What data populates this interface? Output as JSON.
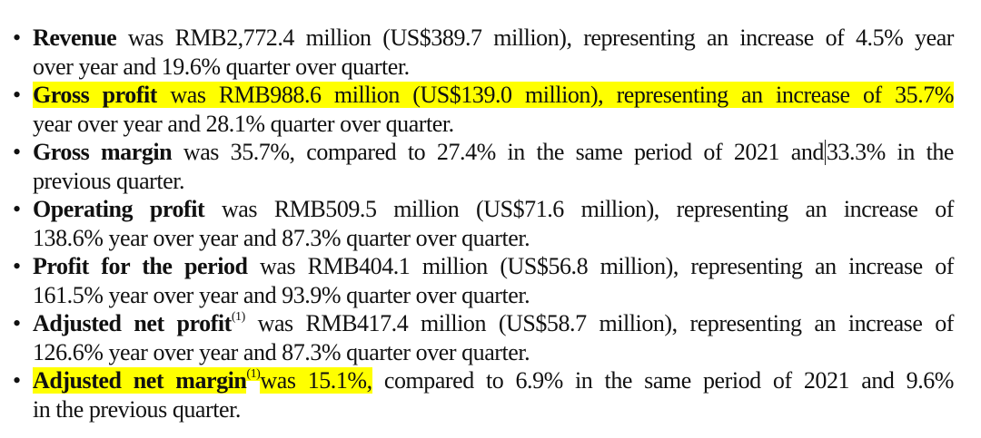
{
  "bullet_glyph": "•",
  "highlight_color": "#ffff00",
  "items": [
    {
      "lines": [
        [
          {
            "t": "Revenue",
            "b": true
          },
          {
            "t": " was RMB2,772.4 million (US$389.7 million), representing an increase of 4.5% year"
          }
        ],
        [
          {
            "t": "over year and 19.6% quarter over quarter."
          }
        ]
      ]
    },
    {
      "lines": [
        [
          {
            "t": "Gross profit",
            "b": true,
            "hl": true
          },
          {
            "t": " was RMB988.6 million (US$139.0 million), representing an increase of 35.7%",
            "hl": true
          }
        ],
        [
          {
            "t": "year over year and 28.1% quarter over quarter."
          }
        ]
      ]
    },
    {
      "lines": [
        [
          {
            "t": "Gross margin",
            "b": true
          },
          {
            "t": " was 35.7%, compared to 27.4% in the same period of 2021 and"
          },
          {
            "caret": true
          },
          {
            "t": "33.3% in the"
          }
        ],
        [
          {
            "t": "previous quarter."
          }
        ]
      ]
    },
    {
      "lines": [
        [
          {
            "t": "Operating profit",
            "b": true
          },
          {
            "t": " was RMB509.5 million (US$71.6 million), representing an increase of"
          }
        ],
        [
          {
            "t": "138.6% year over year and 87.3% quarter over quarter."
          }
        ]
      ]
    },
    {
      "lines": [
        [
          {
            "t": "Profit for the period",
            "b": true
          },
          {
            "t": " was RMB404.1 million (US$56.8 million), representing an increase of"
          }
        ],
        [
          {
            "t": "161.5% year over year and 93.9% quarter over quarter."
          }
        ]
      ]
    },
    {
      "lines": [
        [
          {
            "t": "Adjusted net profit",
            "b": true
          },
          {
            "t": "(1)",
            "sup": true
          },
          {
            "t": " was RMB417.4 million (US$58.7 million), representing an increase of"
          }
        ],
        [
          {
            "t": "126.6% year over year and 87.3% quarter over quarter."
          }
        ]
      ]
    },
    {
      "lines": [
        [
          {
            "t": "Adjusted net margin",
            "b": true,
            "hl": true
          },
          {
            "t": "(1)",
            "sup": true,
            "hl": true
          },
          {
            "t": "was 15.1%,",
            "hl": true
          },
          {
            "t": " compared to 6.9% in the same period of 2021 and 9.6%"
          }
        ],
        [
          {
            "t": "in the previous quarter."
          }
        ]
      ]
    }
  ]
}
